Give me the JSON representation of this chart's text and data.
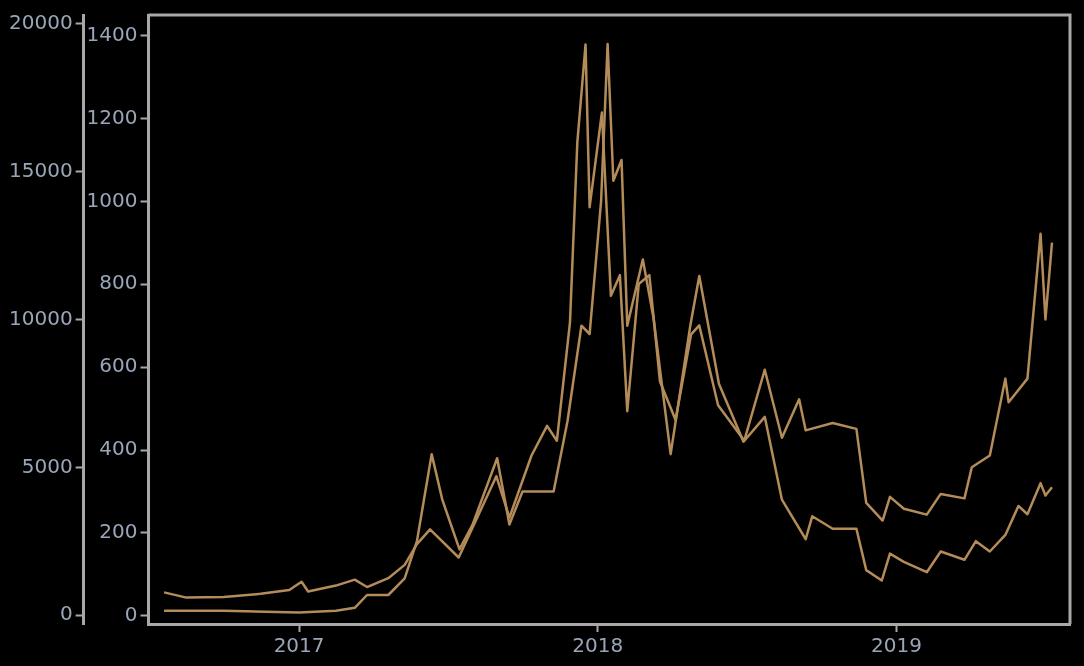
{
  "chart_data": {
    "type": "line",
    "xlim": [
      "2016-07-01",
      "2019-08-01"
    ],
    "xticks": [
      "2017",
      "2018",
      "2019"
    ],
    "ylim": [
      -20,
      1450
    ],
    "yticks": [
      0,
      200,
      400,
      600,
      800,
      1000,
      1200,
      1400
    ],
    "y2lim": [
      -300,
      20300
    ],
    "y2ticks": [
      0,
      5000,
      10000,
      15000,
      20000
    ],
    "grid": false,
    "legend": false,
    "marker": "none",
    "line_style": "solid",
    "series": [
      {
        "color": "#b48c5a",
        "axis": "y2",
        "x": [
          "2016-07-20",
          "2016-08-15",
          "2016-10-01",
          "2016-11-15",
          "2016-12-20",
          "2017-01-04",
          "2017-01-12",
          "2017-02-15",
          "2017-03-10",
          "2017-03-25",
          "2017-04-20",
          "2017-05-10",
          "2017-05-25",
          "2017-06-10",
          "2017-07-15",
          "2017-08-05",
          "2017-08-30",
          "2017-09-15",
          "2017-10-12",
          "2017-10-31",
          "2017-11-12",
          "2017-11-28",
          "2017-12-07",
          "2017-12-17",
          "2017-12-22",
          "2018-01-06",
          "2018-01-17",
          "2018-01-28",
          "2018-02-06",
          "2018-02-20",
          "2018-03-05",
          "2018-03-18",
          "2018-04-06",
          "2018-04-25",
          "2018-05-05",
          "2018-05-28",
          "2018-06-29",
          "2018-07-24",
          "2018-08-14",
          "2018-09-04",
          "2018-09-12",
          "2018-10-15",
          "2018-11-13",
          "2018-11-25",
          "2018-12-15",
          "2018-12-24",
          "2019-01-10",
          "2019-02-07",
          "2019-02-24",
          "2019-03-25",
          "2019-04-03",
          "2019-04-25",
          "2019-05-14",
          "2019-05-18",
          "2019-06-10",
          "2019-06-26",
          "2019-07-02",
          "2019-07-10"
        ],
        "values": [
          770,
          600,
          610,
          720,
          850,
          1130,
          800,
          1000,
          1200,
          950,
          1250,
          1700,
          2400,
          2900,
          1950,
          3200,
          4700,
          3300,
          5400,
          6400,
          5900,
          9900,
          16000,
          19300,
          13800,
          17000,
          10800,
          11500,
          6900,
          11200,
          11500,
          7900,
          6600,
          9500,
          9800,
          7100,
          5900,
          8300,
          6000,
          7300,
          6250,
          6500,
          6300,
          3800,
          3200,
          4000,
          3600,
          3400,
          4100,
          3950,
          5000,
          5400,
          8000,
          7200,
          8000,
          12900,
          10000,
          12600
        ]
      },
      {
        "color": "#b48c5a",
        "axis": "y",
        "x": [
          "2016-07-20",
          "2016-10-01",
          "2017-01-01",
          "2017-02-15",
          "2017-03-10",
          "2017-03-25",
          "2017-04-20",
          "2017-05-10",
          "2017-05-25",
          "2017-06-12",
          "2017-06-25",
          "2017-07-16",
          "2017-08-01",
          "2017-08-31",
          "2017-09-15",
          "2017-10-01",
          "2017-10-20",
          "2017-11-08",
          "2017-11-25",
          "2017-12-12",
          "2017-12-22",
          "2018-01-05",
          "2018-01-13",
          "2018-01-20",
          "2018-01-30",
          "2018-02-06",
          "2018-02-25",
          "2018-03-10",
          "2018-03-31",
          "2018-04-24",
          "2018-05-05",
          "2018-05-29",
          "2018-06-28",
          "2018-07-24",
          "2018-08-14",
          "2018-09-12",
          "2018-09-20",
          "2018-10-15",
          "2018-11-13",
          "2018-11-25",
          "2018-12-14",
          "2018-12-24",
          "2019-01-10",
          "2019-02-07",
          "2019-02-24",
          "2019-03-25",
          "2019-04-08",
          "2019-04-25",
          "2019-05-14",
          "2019-05-30",
          "2019-06-10",
          "2019-06-26",
          "2019-07-02",
          "2019-07-10"
        ],
        "values": [
          12,
          12,
          8,
          12,
          19,
          50,
          50,
          90,
          180,
          390,
          280,
          160,
          220,
          380,
          220,
          300,
          300,
          300,
          470,
          700,
          680,
          1000,
          1380,
          1050,
          1100,
          700,
          860,
          720,
          390,
          700,
          820,
          560,
          420,
          480,
          280,
          185,
          240,
          210,
          210,
          110,
          85,
          150,
          130,
          105,
          155,
          135,
          180,
          155,
          195,
          265,
          245,
          320,
          290,
          310
        ]
      }
    ]
  }
}
